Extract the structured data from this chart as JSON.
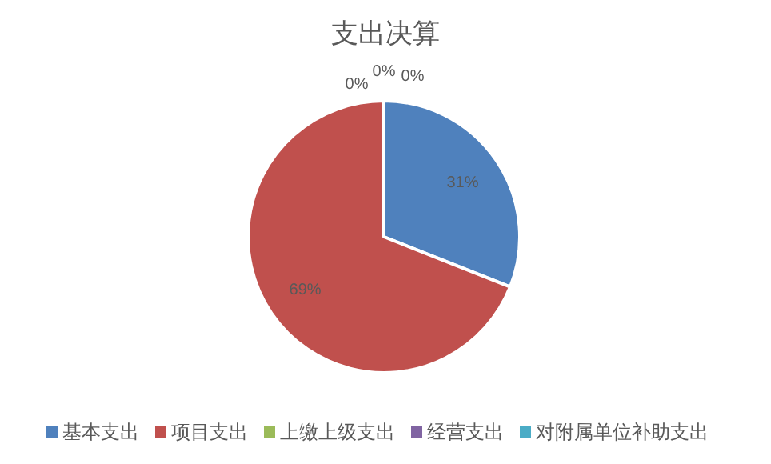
{
  "chart_data": {
    "type": "pie",
    "title": "支出决算",
    "categories": [
      "基本支出",
      "项目支出",
      "上缴上级支出",
      "经营支出",
      "对附属单位补助支出"
    ],
    "values": [
      31,
      69,
      0,
      0,
      0
    ],
    "colors": [
      "#4f81bd",
      "#c0504d",
      "#9bbb59",
      "#8064a2",
      "#4bacc6"
    ],
    "value_labels": [
      "31%",
      "69%",
      "0%",
      "0%",
      "0%"
    ],
    "legend": "bottom"
  }
}
